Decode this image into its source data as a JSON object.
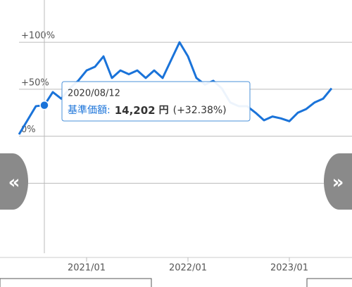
{
  "chart_data": {
    "type": "line",
    "x": [
      "2020/05",
      "2020/06",
      "2020/07",
      "2020/08",
      "2020/09",
      "2020/10",
      "2020/11",
      "2020/12",
      "2021/01",
      "2021/02",
      "2021/03",
      "2021/04",
      "2021/05",
      "2021/06",
      "2021/07",
      "2021/08",
      "2021/09",
      "2021/10",
      "2021/11",
      "2021/12",
      "2022/01",
      "2022/02",
      "2022/03",
      "2022/04",
      "2022/05",
      "2022/06",
      "2022/07",
      "2022/08",
      "2022/09",
      "2022/10",
      "2022/11",
      "2022/12",
      "2023/01",
      "2023/02",
      "2023/03",
      "2023/04",
      "2023/05",
      "2023/06"
    ],
    "values": [
      2,
      17,
      32,
      33,
      47,
      40,
      51,
      59,
      70,
      74,
      85,
      62,
      70,
      66,
      70,
      62,
      70,
      62,
      81,
      100,
      85,
      62,
      55,
      59,
      51,
      36,
      32,
      32,
      25,
      17,
      21,
      19,
      16,
      25,
      29,
      36,
      40,
      51
    ],
    "color": "#1a73d9",
    "ylim": [
      -129,
      145
    ],
    "yticks": [
      {
        "value": 100,
        "label": "+100%"
      },
      {
        "value": 50,
        "label": "+50%"
      },
      {
        "value": 0,
        "label": "0%"
      },
      {
        "value": -50,
        "label": null
      }
    ],
    "xticks": [
      "2021/01",
      "2022/01",
      "2023/01"
    ],
    "grid": true,
    "tooltip": {
      "index": 3,
      "date": "2020/08/12",
      "label": "基準価額:",
      "price": "14,202",
      "unit": "円",
      "change": "(+32.38%)"
    },
    "nav": {
      "prev": "«",
      "next": "»"
    }
  }
}
